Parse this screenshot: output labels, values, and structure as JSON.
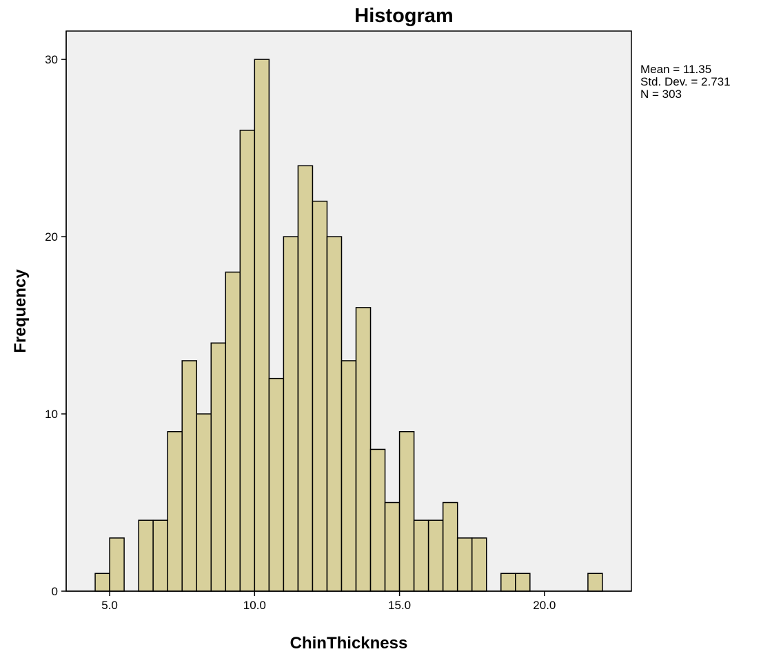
{
  "chart_data": {
    "type": "bar",
    "histogram": true,
    "title": "Histogram",
    "xlabel": "ChinThickness",
    "ylabel": "Frequency",
    "xlim": [
      3.5,
      23.0
    ],
    "ylim": [
      0,
      31.6
    ],
    "x_ticks": [
      {
        "value": 5,
        "label": "5.0"
      },
      {
        "value": 10,
        "label": "10.0"
      },
      {
        "value": 15,
        "label": "15.0"
      },
      {
        "value": 20,
        "label": "20.0"
      }
    ],
    "y_ticks": [
      {
        "value": 0,
        "label": "0"
      },
      {
        "value": 10,
        "label": "10"
      },
      {
        "value": 20,
        "label": "20"
      },
      {
        "value": 30,
        "label": "30"
      }
    ],
    "bin_width": 0.5,
    "bins": [
      {
        "x0": 4.5,
        "count": 1
      },
      {
        "x0": 5.0,
        "count": 3
      },
      {
        "x0": 6.0,
        "count": 4
      },
      {
        "x0": 6.5,
        "count": 4
      },
      {
        "x0": 7.0,
        "count": 9
      },
      {
        "x0": 7.5,
        "count": 13
      },
      {
        "x0": 8.0,
        "count": 10
      },
      {
        "x0": 8.5,
        "count": 14
      },
      {
        "x0": 9.0,
        "count": 18
      },
      {
        "x0": 9.5,
        "count": 26
      },
      {
        "x0": 10.0,
        "count": 30
      },
      {
        "x0": 10.5,
        "count": 12
      },
      {
        "x0": 11.0,
        "count": 20
      },
      {
        "x0": 11.5,
        "count": 24
      },
      {
        "x0": 12.0,
        "count": 22
      },
      {
        "x0": 12.5,
        "count": 20
      },
      {
        "x0": 13.0,
        "count": 13
      },
      {
        "x0": 13.5,
        "count": 16
      },
      {
        "x0": 14.0,
        "count": 8
      },
      {
        "x0": 14.5,
        "count": 5
      },
      {
        "x0": 15.0,
        "count": 9
      },
      {
        "x0": 15.5,
        "count": 4
      },
      {
        "x0": 16.0,
        "count": 4
      },
      {
        "x0": 16.5,
        "count": 5
      },
      {
        "x0": 17.0,
        "count": 3
      },
      {
        "x0": 17.5,
        "count": 3
      },
      {
        "x0": 18.5,
        "count": 1
      },
      {
        "x0": 19.0,
        "count": 1
      },
      {
        "x0": 21.5,
        "count": 1
      }
    ],
    "stats": [
      "Mean = 11.35",
      "Std. Dev. = 2.731",
      "N = 303"
    ],
    "bar_color": "#d8d09b",
    "plot_background": "#f0f0f0",
    "grid": false,
    "legend_position": "top-right"
  }
}
